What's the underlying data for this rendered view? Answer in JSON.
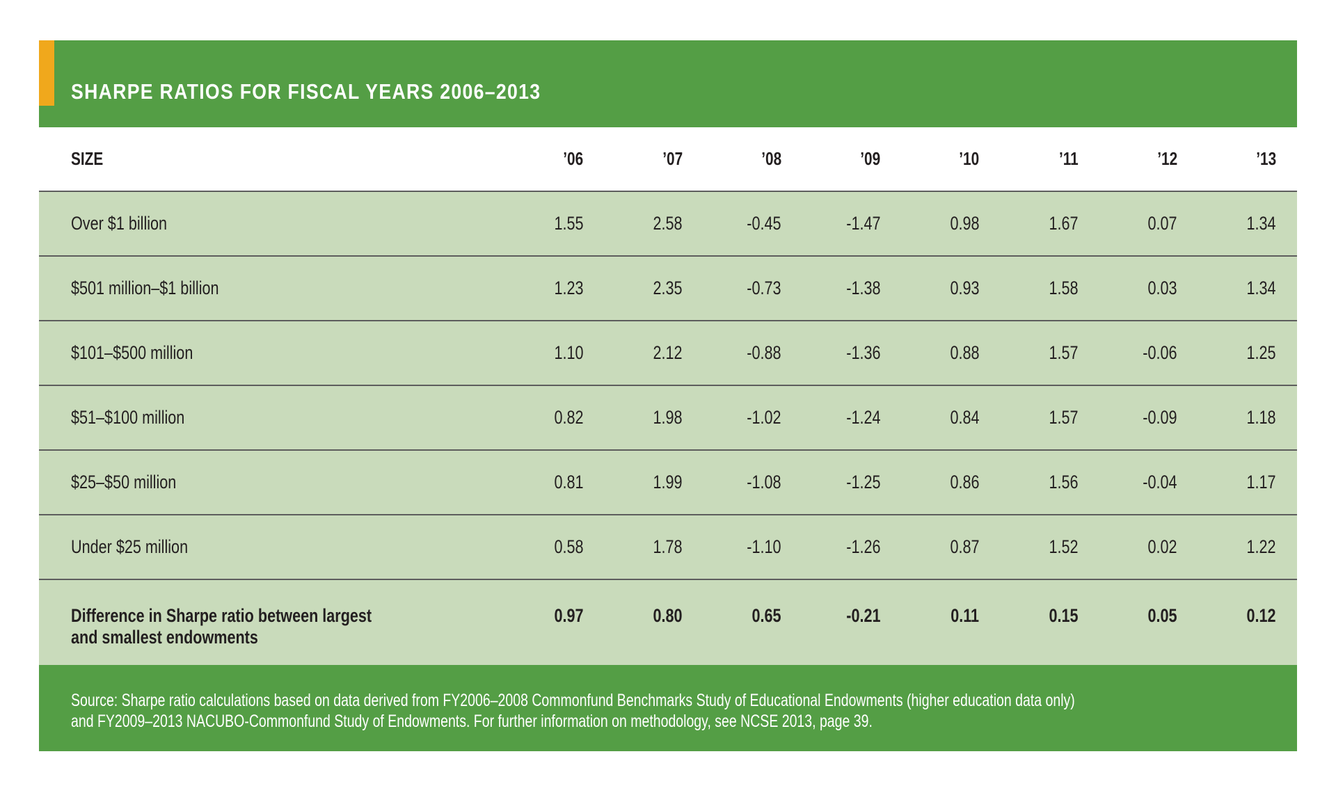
{
  "chart_data": {
    "type": "table",
    "title": "SHARPE RATIOS FOR FISCAL YEARS 2006–2013",
    "columns": [
      "SIZE",
      "’06",
      "’07",
      "’08",
      "’09",
      "’10",
      "’11",
      "’12",
      "’13"
    ],
    "rows": [
      {
        "label": "Over $1 billion",
        "values": [
          "1.55",
          "2.58",
          "-0.45",
          "-1.47",
          "0.98",
          "1.67",
          "0.07",
          "1.34"
        ]
      },
      {
        "label": "$501 million–$1 billion",
        "values": [
          "1.23",
          "2.35",
          "-0.73",
          "-1.38",
          "0.93",
          "1.58",
          "0.03",
          "1.34"
        ]
      },
      {
        "label": "$101–$500 million",
        "values": [
          "1.10",
          "2.12",
          "-0.88",
          "-1.36",
          "0.88",
          "1.57",
          "-0.06",
          "1.25"
        ]
      },
      {
        "label": "$51–$100 million",
        "values": [
          "0.82",
          "1.98",
          "-1.02",
          "-1.24",
          "0.84",
          "1.57",
          "-0.09",
          "1.18"
        ]
      },
      {
        "label": "$25–$50 million",
        "values": [
          "0.81",
          "1.99",
          "-1.08",
          "-1.25",
          "0.86",
          "1.56",
          "-0.04",
          "1.17"
        ]
      },
      {
        "label": "Under $25 million",
        "values": [
          "0.58",
          "1.78",
          "-1.10",
          "-1.26",
          "0.87",
          "1.52",
          "0.02",
          "1.22"
        ]
      }
    ],
    "difference_row": {
      "label_line1": "Difference in Sharpe ratio between largest",
      "label_line2": "and smallest endowments",
      "values": [
        "0.97",
        "0.80",
        "0.65",
        "-0.21",
        "0.11",
        "0.15",
        "0.05",
        "0.12"
      ]
    },
    "source_line1": "Source: Sharpe ratio calculations based on data derived from FY2006–2008 Commonfund Benchmarks Study of Educational Endowments (higher education data only)",
    "source_line2": "and FY2009–2013 NACUBO-Commonfund Study of Endowments. For further information on methodology, see NCSE 2013, page 39."
  },
  "colors": {
    "header_green": "#549e45",
    "accent_orange": "#f0a81c",
    "row_green": "#c9dbbb"
  }
}
